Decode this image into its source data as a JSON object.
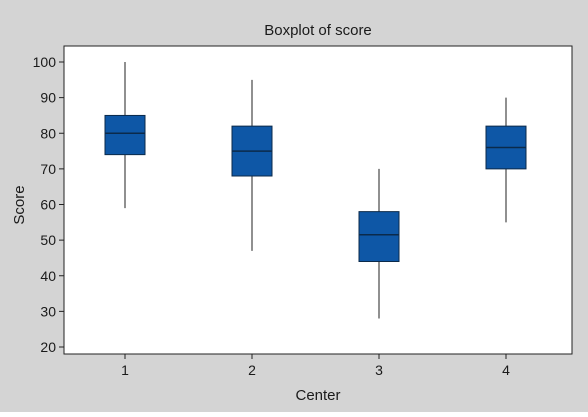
{
  "chart_data": {
    "type": "boxplot",
    "title": "Boxplot of score",
    "xlabel": "Center",
    "ylabel": "Score",
    "ylim": [
      20,
      100
    ],
    "yticks": [
      20,
      30,
      40,
      50,
      60,
      70,
      80,
      90,
      100
    ],
    "categories": [
      "1",
      "2",
      "3",
      "4"
    ],
    "boxes": [
      {
        "category": "1",
        "min": 59,
        "q1": 74,
        "median": 80,
        "q3": 85,
        "max": 100
      },
      {
        "category": "2",
        "min": 47,
        "q1": 68,
        "median": 75,
        "q3": 82,
        "max": 95
      },
      {
        "category": "3",
        "min": 28,
        "q1": 44,
        "median": 51.5,
        "q3": 58,
        "max": 70
      },
      {
        "category": "4",
        "min": 55,
        "q1": 70,
        "median": 76,
        "q3": 82,
        "max": 90
      }
    ],
    "grid": false,
    "legend": "none"
  },
  "colors": {
    "frame_background": "#d4d4d4",
    "plot_background": "#ffffff",
    "box_fill": "#0e57a6",
    "box_stroke": "#0b2a4a",
    "line": "#222222"
  }
}
